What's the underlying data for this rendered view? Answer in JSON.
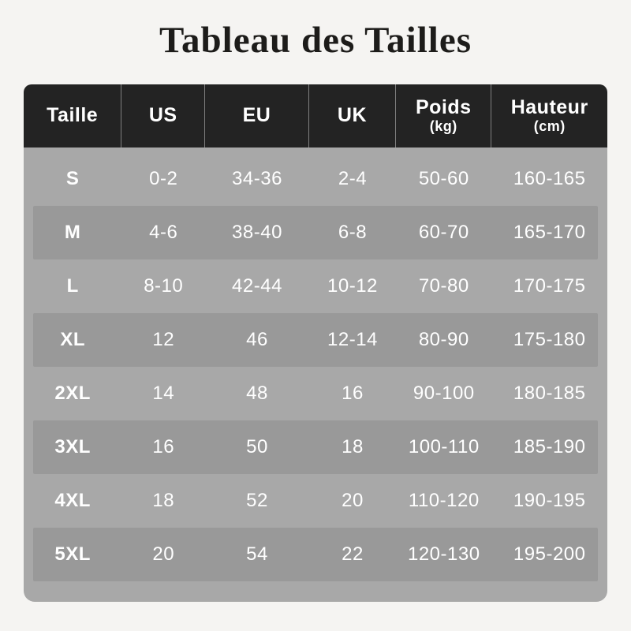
{
  "title": "Tableau des Tailles",
  "colors": {
    "page_background": "#f5f4f2",
    "title_text": "#1d1c1a",
    "header_background": "#232323",
    "body_background": "#a8a8a8",
    "shaded_row_background": "#999999",
    "table_text": "#ffffff",
    "header_divider": "rgba(255,255,255,0.42)"
  },
  "table": {
    "columns": [
      {
        "label": "Taille",
        "sub": ""
      },
      {
        "label": "US",
        "sub": ""
      },
      {
        "label": "EU",
        "sub": ""
      },
      {
        "label": "UK",
        "sub": ""
      },
      {
        "label": "Poids",
        "sub": "(kg)"
      },
      {
        "label": "Hauteur",
        "sub": "(cm)"
      }
    ],
    "rows": [
      {
        "shaded": false,
        "cells": [
          "S",
          "0-2",
          "34-36",
          "2-4",
          "50-60",
          "160-165"
        ]
      },
      {
        "shaded": true,
        "cells": [
          "M",
          "4-6",
          "38-40",
          "6-8",
          "60-70",
          "165-170"
        ]
      },
      {
        "shaded": false,
        "cells": [
          "L",
          "8-10",
          "42-44",
          "10-12",
          "70-80",
          "170-175"
        ]
      },
      {
        "shaded": true,
        "cells": [
          "XL",
          "12",
          "46",
          "12-14",
          "80-90",
          "175-180"
        ]
      },
      {
        "shaded": false,
        "cells": [
          "2XL",
          "14",
          "48",
          "16",
          "90-100",
          "180-185"
        ]
      },
      {
        "shaded": true,
        "cells": [
          "3XL",
          "16",
          "50",
          "18",
          "100-110",
          "185-190"
        ]
      },
      {
        "shaded": false,
        "cells": [
          "4XL",
          "18",
          "52",
          "20",
          "110-120",
          "190-195"
        ]
      },
      {
        "shaded": true,
        "cells": [
          "5XL",
          "20",
          "54",
          "22",
          "120-130",
          "195-200"
        ]
      }
    ]
  },
  "chart_data": {
    "type": "table",
    "title": "Tableau des Tailles",
    "columns": [
      "Taille",
      "US",
      "EU",
      "UK",
      "Poids (kg)",
      "Hauteur (cm)"
    ],
    "rows": [
      [
        "S",
        "0-2",
        "34-36",
        "2-4",
        "50-60",
        "160-165"
      ],
      [
        "M",
        "4-6",
        "38-40",
        "6-8",
        "60-70",
        "165-170"
      ],
      [
        "L",
        "8-10",
        "42-44",
        "10-12",
        "70-80",
        "170-175"
      ],
      [
        "XL",
        "12",
        "46",
        "12-14",
        "80-90",
        "175-180"
      ],
      [
        "2XL",
        "14",
        "48",
        "16",
        "90-100",
        "180-185"
      ],
      [
        "3XL",
        "16",
        "50",
        "18",
        "100-110",
        "185-190"
      ],
      [
        "4XL",
        "18",
        "52",
        "20",
        "110-120",
        "190-195"
      ],
      [
        "5XL",
        "20",
        "54",
        "22",
        "120-130",
        "195-200"
      ]
    ]
  }
}
